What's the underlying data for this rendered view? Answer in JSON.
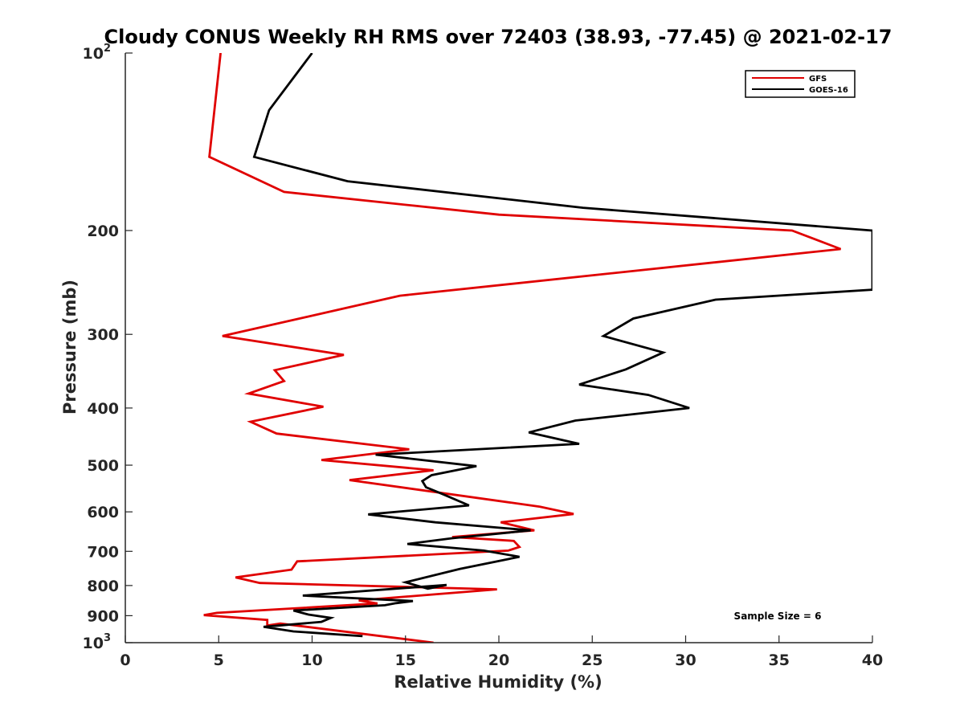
{
  "chart_data": {
    "type": "line",
    "title": "Cloudy CONUS Weekly RH RMS over 72403 (38.93, -77.45) @ 2021-02-17",
    "xlabel": "Relative Humidity (%)",
    "ylabel": "Pressure (mb)",
    "xlim": [
      0,
      40
    ],
    "ylim": [
      100,
      1000
    ],
    "y_scale": "log",
    "y_reversed": true,
    "grid": false,
    "legend_position": "top-right",
    "x_ticks": [
      "0",
      "5",
      "10",
      "15",
      "20",
      "25",
      "30",
      "35",
      "40"
    ],
    "y_ticks": [
      {
        "value": 100,
        "base": "10",
        "exp": "2"
      },
      {
        "value": 200,
        "label": "200"
      },
      {
        "value": 300,
        "label": "300"
      },
      {
        "value": 400,
        "label": "400"
      },
      {
        "value": 500,
        "label": "500"
      },
      {
        "value": 600,
        "label": "600"
      },
      {
        "value": 700,
        "label": "700"
      },
      {
        "value": 800,
        "label": "800"
      },
      {
        "value": 900,
        "label": "900"
      },
      {
        "value": 1000,
        "base": "10",
        "exp": "3"
      }
    ],
    "series": [
      {
        "name": "GFS",
        "color": "#e00000",
        "points": [
          [
            5.1,
            100
          ],
          [
            4.5,
            150
          ],
          [
            8.5,
            172
          ],
          [
            20,
            188
          ],
          [
            35.7,
            200
          ],
          [
            38.3,
            215
          ],
          [
            14.7,
            258
          ],
          [
            5.2,
            302
          ],
          [
            11.7,
            325
          ],
          [
            8.0,
            345
          ],
          [
            8.5,
            360
          ],
          [
            6.6,
            378
          ],
          [
            10.6,
            398
          ],
          [
            6.7,
            422
          ],
          [
            8.1,
            442
          ],
          [
            15.2,
            470
          ],
          [
            10.5,
            490
          ],
          [
            16.5,
            510
          ],
          [
            12.0,
            530
          ],
          [
            22.2,
            588
          ],
          [
            24.0,
            605
          ],
          [
            20.1,
            625
          ],
          [
            21.9,
            645
          ],
          [
            17.5,
            662
          ],
          [
            20.8,
            672
          ],
          [
            21.1,
            688
          ],
          [
            20.5,
            698
          ],
          [
            9.2,
            728
          ],
          [
            8.9,
            752
          ],
          [
            5.9,
            775
          ],
          [
            7.2,
            792
          ],
          [
            19.9,
            812
          ],
          [
            12.5,
            848
          ],
          [
            13.5,
            858
          ],
          [
            4.9,
            890
          ],
          [
            4.2,
            898
          ],
          [
            7.6,
            915
          ],
          [
            7.6,
            935
          ],
          [
            8.3,
            928
          ],
          [
            16.5,
            1000
          ]
        ]
      },
      {
        "name": "GOES-16",
        "color": "#000000",
        "points": [
          [
            10.0,
            100
          ],
          [
            7.7,
            125
          ],
          [
            6.9,
            150
          ],
          [
            11.9,
            165
          ],
          [
            24.5,
            183
          ],
          [
            40.0,
            200
          ],
          [
            40.0,
            252
          ],
          [
            31.6,
            262
          ],
          [
            27.2,
            282
          ],
          [
            25.6,
            302
          ],
          [
            28.8,
            322
          ],
          [
            26.8,
            344
          ],
          [
            24.3,
            365
          ],
          [
            28.0,
            380
          ],
          [
            30.2,
            400
          ],
          [
            24.1,
            420
          ],
          [
            21.6,
            440
          ],
          [
            24.3,
            460
          ],
          [
            13.4,
            480
          ],
          [
            18.8,
            502
          ],
          [
            16.4,
            520
          ],
          [
            15.9,
            532
          ],
          [
            16.1,
            545
          ],
          [
            17.0,
            560
          ],
          [
            18.4,
            585
          ],
          [
            13.0,
            606
          ],
          [
            16.6,
            625
          ],
          [
            21.7,
            645
          ],
          [
            17.5,
            665
          ],
          [
            15.1,
            680
          ],
          [
            19.2,
            698
          ],
          [
            21.1,
            715
          ],
          [
            17.9,
            750
          ],
          [
            15.0,
            790
          ],
          [
            16.2,
            810
          ],
          [
            17.2,
            798
          ],
          [
            9.5,
            832
          ],
          [
            15.4,
            850
          ],
          [
            14.5,
            857
          ],
          [
            13.9,
            864
          ],
          [
            9.0,
            882
          ],
          [
            9.8,
            896
          ],
          [
            11.0,
            908
          ],
          [
            10.5,
            922
          ],
          [
            7.4,
            940
          ],
          [
            9.0,
            957
          ],
          [
            12.7,
            975
          ]
        ]
      }
    ],
    "annotation": "Sample Size = 6"
  }
}
